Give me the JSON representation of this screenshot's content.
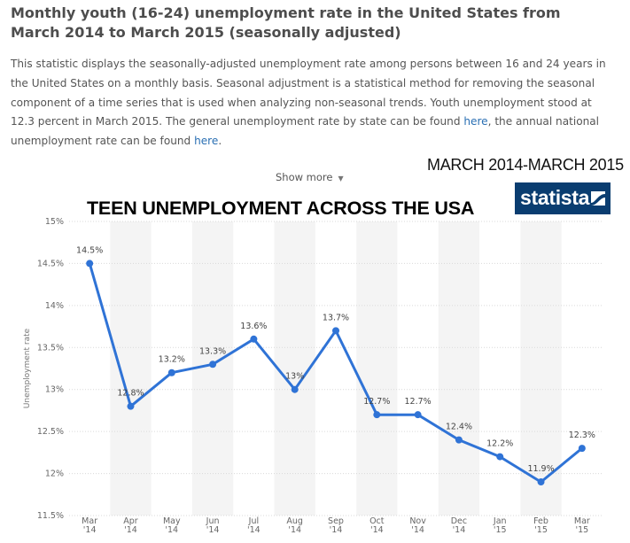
{
  "title": "Monthly youth (16-24) unemployment rate in the United States from March 2014 to March 2015 (seasonally adjusted)",
  "description": {
    "part1": "This statistic displays the seasonally-adjusted unemployment rate among persons between 16 and 24 years in the United States on a monthly basis. Seasonal adjustment is a statistical method for removing the seasonal component of a time series that is used when analyzing non-seasonal trends. Youth unemployment stood at 12.3 percent in March 2015. The general unemployment rate by state can be found ",
    "link1": "here",
    "part2": ", the annual national unemployment rate can be found ",
    "link2": "here",
    "part3": "."
  },
  "show_more": "Show more",
  "overlay": {
    "period": "MARCH 2014-MARCH 2015",
    "headline": "TEEN UNEMPLOYMENT ACROSS THE USA"
  },
  "logo": {
    "text": "statista",
    "color": "#0a3d70"
  },
  "chart_data": {
    "type": "line",
    "ylabel": "Unemployment rate",
    "ylim": [
      11.5,
      15
    ],
    "yticks": [
      15,
      14.5,
      14,
      13.5,
      13,
      12.5,
      12,
      11.5
    ],
    "ytick_labels": [
      "15%",
      "14.5%",
      "14%",
      "13.5%",
      "13%",
      "12.5%",
      "12%",
      "11.5%"
    ],
    "categories": [
      [
        "Mar",
        "'14"
      ],
      [
        "Apr",
        "'14"
      ],
      [
        "May",
        "'14"
      ],
      [
        "Jun",
        "'14"
      ],
      [
        "Jul",
        "'14"
      ],
      [
        "Aug",
        "'14"
      ],
      [
        "Sep",
        "'14"
      ],
      [
        "Oct",
        "'14"
      ],
      [
        "Nov",
        "'14"
      ],
      [
        "Dec",
        "'14"
      ],
      [
        "Jan",
        "'15"
      ],
      [
        "Feb",
        "'15"
      ],
      [
        "Mar",
        "'15"
      ]
    ],
    "values": [
      14.5,
      12.8,
      13.2,
      13.3,
      13.6,
      13.0,
      13.7,
      12.7,
      12.7,
      12.4,
      12.2,
      11.9,
      12.3
    ],
    "data_labels": [
      "14.5%",
      "12.8%",
      "13.2%",
      "13.3%",
      "13.6%",
      "13%",
      "13.7%",
      "12.7%",
      "12.7%",
      "12.4%",
      "12.2%",
      "11.9%",
      "12.3%"
    ],
    "line_color": "#2f73d6",
    "band_color": "#f4f4f4",
    "grid": true
  }
}
